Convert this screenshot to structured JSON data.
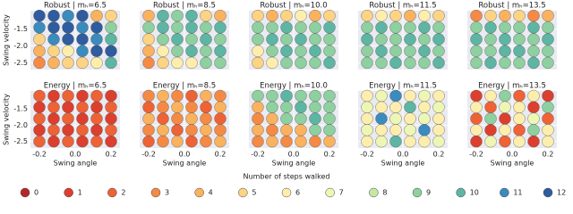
{
  "chart_data": {
    "type": "scatter",
    "xlabel": "Swing angle",
    "ylabel": "Swing velocity",
    "xlim": [
      -0.25,
      0.25
    ],
    "ylim": [
      -2.7,
      -0.95
    ],
    "xticks": [
      -0.2,
      {
        "value": 0,
        "label": "0.0"
      },
      0.2
    ],
    "yticks": [
      -1.5,
      {
        "value": -2,
        "label": "-2.0"
      },
      -2.5
    ],
    "grid": true,
    "cell_x": [
      -0.2,
      -0.12,
      -0.04,
      0.04,
      0.12,
      0.2
    ],
    "cell_y": [
      -1.1,
      -1.45,
      -1.8,
      -2.15,
      -2.5
    ],
    "legend": {
      "title": "Number of steps walked",
      "categories": [
        0,
        1,
        2,
        3,
        4,
        5,
        6,
        7,
        8,
        9,
        10,
        11,
        12
      ],
      "colors": [
        "#b8242c",
        "#dc3f2e",
        "#ee6236",
        "#f58a45",
        "#fab25e",
        "#fdd384",
        "#fdeeae",
        "#eef6b4",
        "#c6e8a2",
        "#8ed0a0",
        "#5db5a3",
        "#3a8bbe",
        "#2e5c9f"
      ]
    },
    "panels": [
      {
        "title": "Robust | mₕ=6.5",
        "values": [
          [
            12,
            12,
            11,
            12,
            4,
            5
          ],
          [
            11,
            12,
            12,
            11,
            12,
            9
          ],
          [
            5,
            11,
            12,
            12,
            11,
            10
          ],
          [
            4,
            5,
            6,
            11,
            12,
            12
          ],
          [
            3,
            4,
            5,
            5,
            6,
            10
          ]
        ]
      },
      {
        "title": "Robust | mₕ=8.5",
        "values": [
          [
            4,
            10,
            9,
            10,
            5,
            4
          ],
          [
            9,
            10,
            9,
            10,
            9,
            10
          ],
          [
            5,
            9,
            10,
            9,
            10,
            9
          ],
          [
            4,
            6,
            9,
            10,
            9,
            10
          ],
          [
            3,
            5,
            6,
            6,
            9,
            9
          ]
        ]
      },
      {
        "title": "Robust | mₕ=10.0",
        "values": [
          [
            5,
            4,
            5,
            6,
            4,
            5
          ],
          [
            9,
            9,
            10,
            9,
            9,
            10
          ],
          [
            9,
            10,
            9,
            10,
            9,
            9
          ],
          [
            6,
            9,
            10,
            9,
            10,
            9
          ],
          [
            5,
            6,
            9,
            9,
            9,
            10
          ]
        ]
      },
      {
        "title": "Robust | mₕ=11.5",
        "values": [
          [
            5,
            6,
            5,
            4,
            6,
            5
          ],
          [
            9,
            10,
            9,
            9,
            10,
            9
          ],
          [
            10,
            9,
            9,
            10,
            9,
            10
          ],
          [
            9,
            10,
            9,
            9,
            10,
            9
          ],
          [
            9,
            9,
            10,
            9,
            9,
            10
          ]
        ]
      },
      {
        "title": "Robust | mₕ=13.5",
        "values": [
          [
            3,
            5,
            4,
            5,
            3,
            4
          ],
          [
            9,
            10,
            9,
            9,
            10,
            9
          ],
          [
            10,
            9,
            10,
            9,
            9,
            10
          ],
          [
            9,
            9,
            10,
            10,
            9,
            9
          ],
          [
            9,
            10,
            9,
            9,
            10,
            9
          ]
        ]
      },
      {
        "title": "Energy | mₕ=6.5",
        "values": [
          [
            2,
            1,
            2,
            1,
            2,
            1
          ],
          [
            1,
            2,
            1,
            2,
            1,
            2
          ],
          [
            2,
            1,
            2,
            1,
            2,
            1
          ],
          [
            1,
            2,
            1,
            2,
            1,
            2
          ],
          [
            2,
            1,
            2,
            1,
            2,
            1
          ]
        ]
      },
      {
        "title": "Energy | mₕ=8.5",
        "values": [
          [
            3,
            4,
            3,
            2,
            4,
            3
          ],
          [
            2,
            3,
            4,
            3,
            2,
            4
          ],
          [
            4,
            2,
            3,
            4,
            3,
            2
          ],
          [
            3,
            4,
            2,
            3,
            4,
            3
          ],
          [
            2,
            3,
            4,
            2,
            3,
            4
          ]
        ]
      },
      {
        "title": "Energy | mₕ=10.0",
        "values": [
          [
            9,
            9,
            10,
            9,
            9,
            9
          ],
          [
            4,
            9,
            9,
            10,
            9,
            9
          ],
          [
            3,
            4,
            9,
            9,
            10,
            9
          ],
          [
            4,
            3,
            4,
            4,
            9,
            9
          ],
          [
            3,
            4,
            3,
            4,
            3,
            4
          ]
        ]
      },
      {
        "title": "Energy | mₕ=11.5",
        "values": [
          [
            6,
            7,
            11,
            6,
            7,
            6
          ],
          [
            7,
            6,
            6,
            10,
            6,
            7
          ],
          [
            6,
            11,
            7,
            6,
            7,
            6
          ],
          [
            7,
            6,
            6,
            7,
            11,
            6
          ],
          [
            6,
            7,
            10,
            6,
            6,
            7
          ]
        ]
      },
      {
        "title": "Energy | mₕ=13.5",
        "values": [
          [
            1,
            6,
            9,
            2,
            6,
            1
          ],
          [
            6,
            2,
            7,
            6,
            1,
            9
          ],
          [
            2,
            9,
            1,
            6,
            7,
            2
          ],
          [
            6,
            1,
            6,
            2,
            9,
            6
          ],
          [
            1,
            7,
            2,
            6,
            1,
            6
          ]
        ]
      }
    ]
  }
}
